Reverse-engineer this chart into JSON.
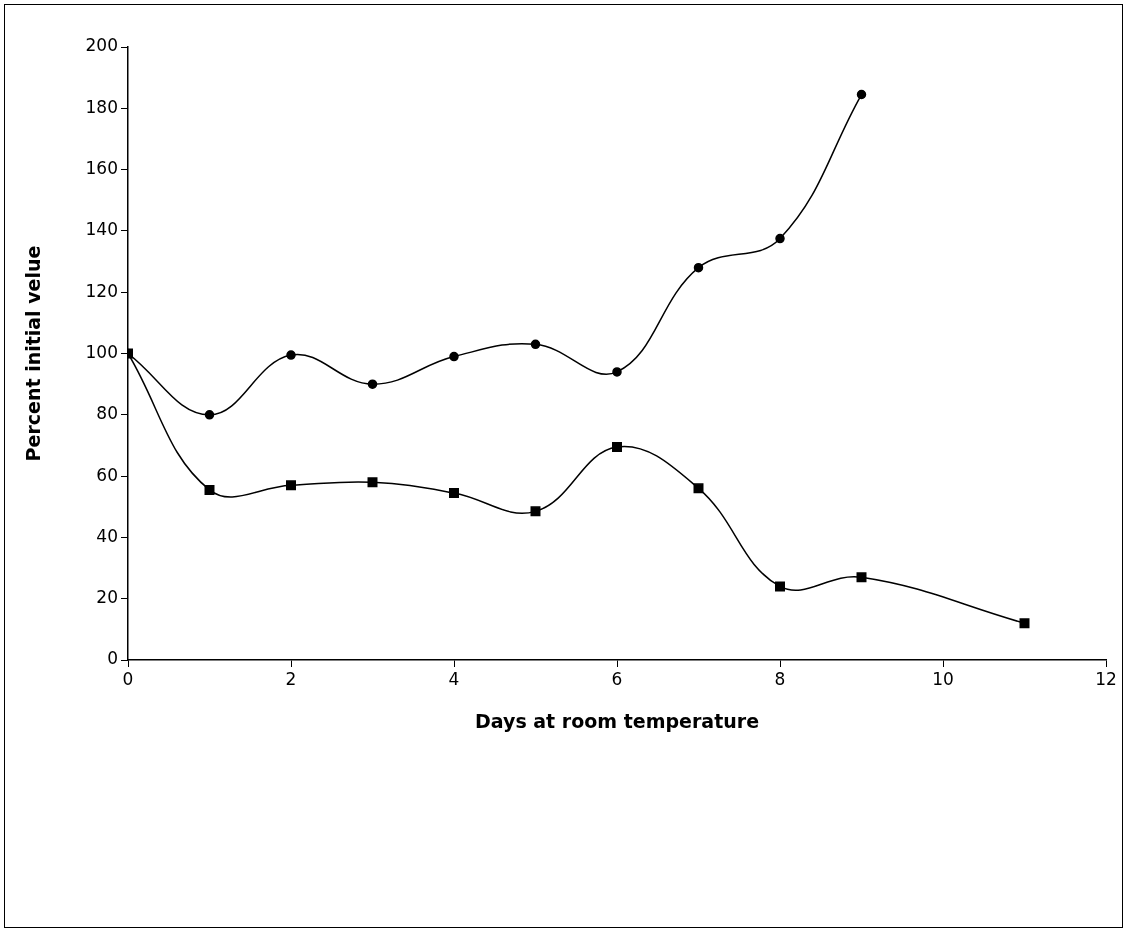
{
  "chart_data": {
    "type": "line",
    "xlabel": "Days at room temperature",
    "ylabel": "Percent initial velue",
    "xlim": [
      0,
      12
    ],
    "xticks": [
      0,
      2,
      4,
      6,
      8,
      10,
      12
    ],
    "ylim": [
      0,
      200
    ],
    "yticks": [
      0,
      20,
      40,
      60,
      80,
      100,
      120,
      140,
      160,
      180,
      200
    ],
    "grid": false,
    "legend": false,
    "line_style": "solid",
    "series": [
      {
        "color": "#000000",
        "marker": "circle",
        "x": [
          0,
          1,
          2,
          3,
          4,
          5,
          6,
          7,
          8,
          9
        ],
        "values": [
          100,
          80,
          99.5,
          90,
          99,
          103,
          94,
          128,
          137.5,
          184.5
        ]
      },
      {
        "color": "#000000",
        "marker": "square",
        "x": [
          0,
          1,
          2,
          3,
          4,
          5,
          6,
          7,
          8,
          9,
          11
        ],
        "values": [
          100,
          55.5,
          57,
          58,
          54.5,
          48.5,
          69.5,
          56,
          24,
          27,
          12
        ]
      }
    ]
  }
}
